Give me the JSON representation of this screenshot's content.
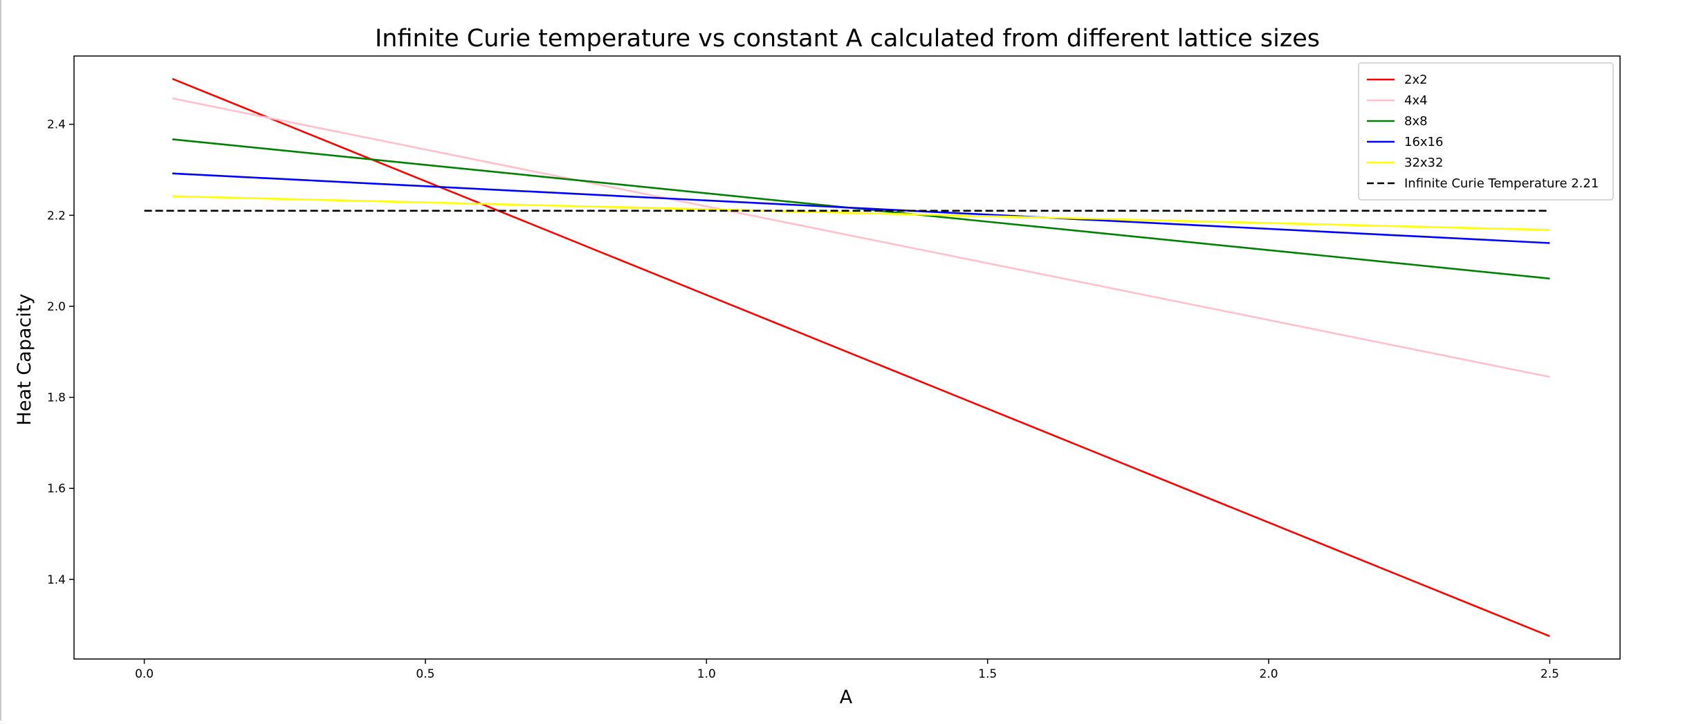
{
  "chart_data": {
    "type": "line",
    "title": "Infinite Curie temperature vs constant A calculated from different lattice sizes",
    "xlabel": "A",
    "ylabel": "Heat Capacity",
    "xlim": [
      -0.125,
      2.625
    ],
    "ylim": [
      1.225,
      2.55
    ],
    "xticks": [
      {
        "value": 0.0,
        "label": "0.0"
      },
      {
        "value": 0.5,
        "label": "0.5"
      },
      {
        "value": 1.0,
        "label": "1.0"
      },
      {
        "value": 1.5,
        "label": "1.5"
      },
      {
        "value": 2.0,
        "label": "2.0"
      },
      {
        "value": 2.5,
        "label": "2.5"
      }
    ],
    "yticks": [
      {
        "value": 1.4,
        "label": "1.4"
      },
      {
        "value": 1.6,
        "label": "1.6"
      },
      {
        "value": 1.8,
        "label": "1.8"
      },
      {
        "value": 2.0,
        "label": "2.0"
      },
      {
        "value": 2.2,
        "label": "2.2"
      },
      {
        "value": 2.4,
        "label": "2.4"
      }
    ],
    "grid": false,
    "legend_position": "top-right",
    "series": [
      {
        "name": "2x2",
        "color": "#ff0000",
        "style": "solid",
        "x": [
          0.05,
          2.5
        ],
        "y": [
          2.5,
          1.275
        ]
      },
      {
        "name": "4x4",
        "color": "#ffc0cb",
        "style": "solid",
        "x": [
          0.05,
          2.5
        ],
        "y": [
          2.457,
          1.845
        ]
      },
      {
        "name": "8x8",
        "color": "#008000",
        "style": "solid",
        "x": [
          0.05,
          2.5
        ],
        "y": [
          2.367,
          2.061
        ]
      },
      {
        "name": "16x16",
        "color": "#0000ff",
        "style": "solid",
        "x": [
          0.05,
          2.5
        ],
        "y": [
          2.292,
          2.139
        ]
      },
      {
        "name": "32x32",
        "color": "#ffff00",
        "style": "solid",
        "x": [
          0.05,
          2.5
        ],
        "y": [
          2.242,
          2.168
        ]
      },
      {
        "name": "Infinite Curie Temperature 2.21",
        "color": "#000000",
        "style": "dashed",
        "x": [
          0.0,
          2.5
        ],
        "y": [
          2.21,
          2.21
        ]
      }
    ]
  }
}
